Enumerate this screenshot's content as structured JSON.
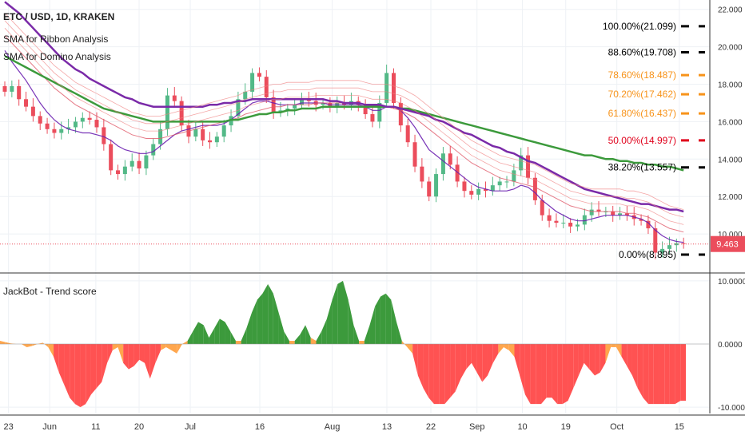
{
  "header": {
    "symbol_line": "ETC / USD, 1D, KRAKEN",
    "indicator_1": "SMA for Ribbon Analysis",
    "indicator_2": "SMA for Domino Analysis"
  },
  "price_label": "9.463",
  "colors": {
    "bull": "#53b987",
    "bear": "#eb4d5c",
    "fib_black": "#000000",
    "fib_orange": "#f7931a",
    "fib_red": "#e0001b",
    "trend_green": "#3c9a3c",
    "trend_red": "#ff5252",
    "trend_orange": "#ffa64d",
    "grid": "#eef1f5",
    "axis": "#333333"
  },
  "chart_data": [
    {
      "type": "candlestick",
      "title": "ETC / USD, 1D, KRAKEN",
      "ylim": [
        8.0,
        22.5
      ],
      "y_ticks": [
        "22.000",
        "20.000",
        "18.000",
        "16.000",
        "14.000",
        "12.000",
        "10.000"
      ],
      "x_ticks": [
        "23",
        "Jun",
        "11",
        "20",
        "Jul",
        "16",
        "Aug",
        "13",
        "22",
        "Sep",
        "10",
        "19",
        "Oct",
        "15"
      ],
      "last_price": 9.463,
      "fib_levels": [
        {
          "label": "100.00%(21.099)",
          "value": 21.099,
          "color": "#000000"
        },
        {
          "label": "88.60%(19.708)",
          "value": 19.708,
          "color": "#000000"
        },
        {
          "label": "78.60%(18.487)",
          "value": 18.487,
          "color": "#f7931a"
        },
        {
          "label": "70.20%(17.462)",
          "value": 17.462,
          "color": "#f7931a"
        },
        {
          "label": "61.80%(16.437)",
          "value": 16.437,
          "color": "#f7931a"
        },
        {
          "label": "50.00%(14.997)",
          "value": 14.997,
          "color": "#e0001b"
        },
        {
          "label": "38.20%(13.557)",
          "value": 13.557,
          "color": "#000000"
        },
        {
          "label": "0.00%(8.895)",
          "value": 8.895,
          "color": "#000000"
        }
      ],
      "series": [
        {
          "values": [
            17.6,
            17.9,
            17.2,
            16.8,
            16.3,
            15.9,
            15.6,
            15.4,
            15.6,
            15.7,
            16.0,
            16.2,
            16.1,
            15.7,
            14.8,
            13.4,
            13.2,
            13.6,
            13.9,
            13.5,
            14.2,
            14.8,
            15.6,
            17.4,
            17.1,
            15.8,
            15.2,
            15.6,
            15.0,
            14.9,
            15.2,
            15.8,
            16.3,
            17.2,
            17.6,
            18.6,
            18.4,
            17.3,
            16.5,
            16.6,
            16.7,
            16.9,
            17.2,
            17.1,
            16.9,
            17.0,
            16.8,
            17.0,
            16.9,
            17.1,
            16.9,
            16.4,
            16.0,
            17.0,
            18.6,
            17.0,
            15.8,
            14.9,
            13.6,
            12.8,
            12.0,
            13.2,
            14.3,
            13.7,
            12.8,
            12.3,
            12.1,
            12.4,
            12.3,
            12.6,
            12.8,
            12.8,
            13.4,
            14.2,
            13.0,
            11.8,
            11.0,
            10.7,
            10.6,
            10.6,
            10.4,
            10.5,
            11.0,
            11.3,
            11.2,
            11.2,
            11.0,
            11.1,
            11.0,
            10.8,
            10.7,
            10.3,
            9.0,
            9.2,
            9.4,
            9.5,
            9.46
          ]
        },
        {
          "values": [
            19.8,
            19.2,
            18.7,
            18.2,
            17.6,
            17.0,
            16.5,
            16.1,
            15.8,
            15.6,
            15.5,
            15.4,
            15.4,
            15.3,
            15.2,
            15.0,
            14.7,
            14.5,
            14.4,
            14.3,
            14.3,
            14.4,
            14.7,
            15.0,
            15.3,
            15.5,
            15.6,
            15.7,
            15.8,
            15.8,
            15.8,
            15.9,
            16.1,
            16.4,
            16.7,
            17.0,
            17.1,
            17.1,
            17.0,
            16.9,
            16.9,
            16.9,
            17.0,
            17.0,
            17.0,
            17.0,
            16.9,
            16.9,
            16.9,
            16.9,
            16.9,
            16.8,
            16.6,
            16.6,
            16.8,
            16.8,
            16.6,
            16.2,
            15.7,
            15.1,
            14.5,
            14.2,
            13.9,
            13.6,
            13.3,
            13.0,
            12.7,
            12.5,
            12.4,
            12.3,
            12.3,
            12.3,
            12.4,
            12.6,
            12.5,
            12.2,
            11.8,
            11.5,
            11.2,
            11.0,
            10.8,
            10.7,
            10.7,
            10.8,
            10.9,
            11.0,
            11.0,
            11.0,
            11.0,
            10.9,
            10.8,
            10.6,
            10.2,
            9.9,
            9.7,
            9.6,
            9.55
          ]
        },
        {
          "values": [
            20.6,
            20.2,
            19.8,
            19.4,
            19.0,
            18.6,
            18.2,
            17.8,
            17.5,
            17.2,
            16.9,
            16.7,
            16.5,
            16.3,
            16.1,
            15.9,
            15.7,
            15.5,
            15.3,
            15.2,
            15.1,
            15.1,
            15.1,
            15.2,
            15.3,
            15.4,
            15.5,
            15.6,
            15.7,
            15.8,
            15.9,
            16.0,
            16.1,
            16.2,
            16.4,
            16.5,
            16.6,
            16.7,
            16.8,
            16.8,
            16.9,
            16.9,
            16.9,
            16.9,
            17.0,
            17.0,
            17.0,
            17.0,
            17.0,
            17.0,
            17.0,
            16.9,
            16.8,
            16.8,
            16.8,
            16.7,
            16.6,
            16.4,
            16.2,
            15.9,
            15.6,
            15.3,
            15.0,
            14.7,
            14.4,
            14.1,
            13.8,
            13.6,
            13.4,
            13.2,
            13.0,
            12.9,
            12.8,
            12.7,
            12.6,
            12.5,
            12.3,
            12.1,
            11.9,
            11.7,
            11.5,
            11.4,
            11.3,
            11.2,
            11.2,
            11.2,
            11.2,
            11.2,
            11.1,
            11.1,
            11.0,
            10.9,
            10.7,
            10.5,
            10.3,
            10.2,
            10.1
          ]
        },
        {
          "values": [
            19.5,
            19.3,
            19.1,
            18.9,
            18.7,
            18.5,
            18.3,
            18.1,
            17.9,
            17.7,
            17.5,
            17.3,
            17.1,
            16.9,
            16.7,
            16.6,
            16.5,
            16.4,
            16.3,
            16.2,
            16.1,
            16.0,
            16.0,
            16.0,
            16.0,
            16.0,
            16.0,
            16.0,
            16.0,
            16.0,
            16.0,
            16.0,
            16.1,
            16.1,
            16.2,
            16.3,
            16.4,
            16.4,
            16.5,
            16.5,
            16.6,
            16.6,
            16.7,
            16.7,
            16.7,
            16.8,
            16.8,
            16.8,
            16.8,
            16.8,
            16.8,
            16.8,
            16.8,
            16.8,
            16.8,
            16.8,
            16.7,
            16.7,
            16.6,
            16.5,
            16.4,
            16.3,
            16.2,
            16.1,
            16.0,
            15.9,
            15.8,
            15.7,
            15.6,
            15.5,
            15.4,
            15.3,
            15.2,
            15.1,
            15.0,
            14.9,
            14.8,
            14.7,
            14.6,
            14.5,
            14.4,
            14.3,
            14.2,
            14.2,
            14.1,
            14.0,
            14.0,
            13.9,
            13.9,
            13.8,
            13.8,
            13.7,
            13.7,
            13.6,
            13.6,
            13.5,
            13.4
          ]
        },
        {
          "values": [
            22.4,
            22.1,
            21.8,
            21.4,
            21.0,
            20.6,
            20.2,
            19.8,
            19.4,
            19.1,
            18.8,
            18.6,
            18.3,
            18.1,
            17.9,
            17.7,
            17.5,
            17.3,
            17.2,
            17.0,
            16.9,
            16.8,
            16.8,
            16.8,
            16.8,
            16.8,
            16.8,
            16.8,
            16.8,
            16.9,
            16.9,
            17.0,
            17.0,
            17.1,
            17.1,
            17.2,
            17.2,
            17.2,
            17.2,
            17.2,
            17.2,
            17.2,
            17.2,
            17.2,
            17.2,
            17.2,
            17.1,
            17.1,
            17.0,
            17.0,
            17.0,
            16.9,
            16.9,
            16.9,
            16.8,
            16.8,
            16.7,
            16.6,
            16.5,
            16.4,
            16.3,
            16.1,
            16.0,
            15.8,
            15.6,
            15.4,
            15.3,
            15.1,
            14.9,
            14.7,
            14.6,
            14.4,
            14.3,
            14.1,
            13.9,
            13.8,
            13.6,
            13.4,
            13.2,
            13.0,
            12.8,
            12.6,
            12.4,
            12.3,
            12.2,
            12.1,
            12.0,
            11.9,
            11.8,
            11.7,
            11.6,
            11.6,
            11.5,
            11.4,
            11.3,
            11.3,
            11.2
          ]
        }
      ]
    },
    {
      "type": "area",
      "title": "JackBot - Trend score",
      "ylim": [
        -11,
        11
      ],
      "y_ticks": [
        "10.0000",
        "0.0000",
        "-10.0000"
      ],
      "values": [
        0.5,
        0.3,
        0.1,
        0,
        0,
        -0.5,
        -0.3,
        0,
        0.2,
        -0.5,
        -2,
        -4.5,
        -6.5,
        -8.5,
        -9.5,
        -10,
        -9.5,
        -8,
        -7,
        -6,
        -3,
        -1,
        -0.5,
        -3,
        -4,
        -3.5,
        -2.5,
        -3,
        -5.5,
        -3,
        -1,
        -0.5,
        -1,
        -1.5,
        0,
        0.5,
        2,
        3.5,
        3,
        1,
        2.5,
        4,
        3.5,
        2,
        0.5,
        0.5,
        2.5,
        5,
        7,
        8,
        9.5,
        8,
        5,
        2,
        0.5,
        0.5,
        1.5,
        3,
        1,
        0.5,
        2,
        4,
        7,
        9.5,
        10,
        7,
        3,
        0.5,
        0.5,
        3,
        6,
        7.5,
        8,
        7,
        3.5,
        0.5,
        -0.5,
        -1.5,
        -5,
        -7,
        -8.5,
        -9.5,
        -9.5,
        -9.5,
        -8.5,
        -7.5,
        -5.5,
        -4,
        -3,
        -4.5,
        -6,
        -5,
        -3,
        -1.5,
        -0.5,
        -1,
        -2,
        -5,
        -8,
        -9.5,
        -9.5,
        -9.5,
        -8.5,
        -8.5,
        -9.5,
        -9.5,
        -9,
        -7,
        -5,
        -3,
        -4,
        -5,
        -4.5,
        -3,
        -0.5,
        -0.5,
        -2,
        -3.5,
        -5,
        -7,
        -8.5,
        -9.5,
        -9.5,
        -9.5,
        -9.5,
        -9.5,
        -9.5,
        -9,
        -9
      ]
    }
  ]
}
